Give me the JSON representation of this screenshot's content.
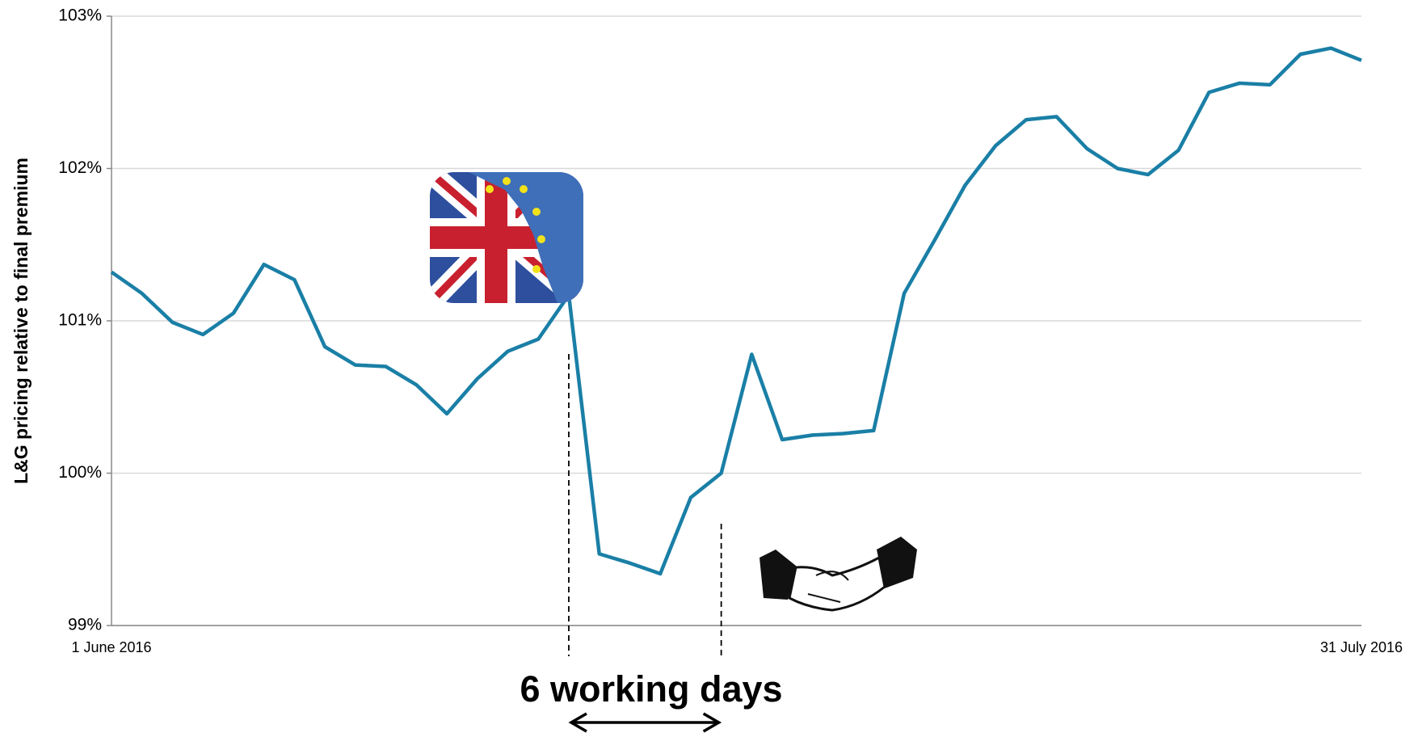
{
  "chart_data": {
    "type": "line",
    "y_label": "L&G pricing relative to final premium",
    "annotation": "6 working days",
    "categories": [
      "1 June 2016",
      null,
      null,
      null,
      null,
      null,
      null,
      null,
      null,
      null,
      null,
      null,
      null,
      null,
      null,
      null,
      null,
      null,
      null,
      null,
      null,
      null,
      null,
      null,
      null,
      null,
      null,
      null,
      null,
      null,
      null,
      null,
      null,
      null,
      null,
      null,
      null,
      null,
      null,
      null,
      null,
      "31 July 2016"
    ],
    "series": [
      {
        "name": "L&G pricing",
        "color": "#1a7fa6",
        "values": [
          101.32,
          101.18,
          100.99,
          100.91,
          101.05,
          101.37,
          101.27,
          100.83,
          100.71,
          100.7,
          100.58,
          100.39,
          100.62,
          100.8,
          100.88,
          101.17,
          99.47,
          99.41,
          99.34,
          99.84,
          100.0,
          100.78,
          100.22,
          100.25,
          100.26,
          100.28,
          101.18,
          101.53,
          101.89,
          102.15,
          102.32,
          102.34,
          102.13,
          102.0,
          101.96,
          102.12,
          102.5,
          102.56,
          102.55,
          102.75,
          102.79,
          102.71
        ]
      }
    ],
    "ylim": [
      99,
      103
    ],
    "yticks": [
      {
        "value": 99,
        "label": "99%"
      },
      {
        "value": 100,
        "label": "100%"
      },
      {
        "value": 101,
        "label": "101%"
      },
      {
        "value": 102,
        "label": "102%"
      },
      {
        "value": 103,
        "label": "103%"
      }
    ],
    "grid": true
  }
}
